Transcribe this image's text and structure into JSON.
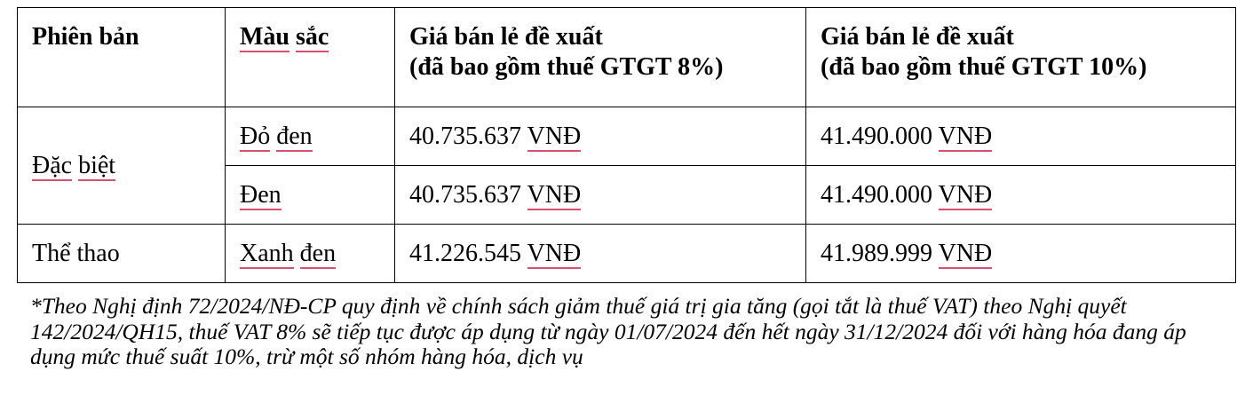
{
  "table": {
    "headers": [
      [
        {
          "t": "Phiên bản",
          "u": false
        }
      ],
      [
        {
          "t": "Màu",
          "u": true
        },
        {
          "t": " ",
          "u": false
        },
        {
          "t": "sắc",
          "u": true
        }
      ],
      [
        {
          "t": "Giá bán lẻ đề xuất",
          "u": false
        },
        {
          "br": true
        },
        {
          "t": "(đã bao gồm thuế GTGT 8%)",
          "u": false
        }
      ],
      [
        {
          "t": "Giá bán lẻ đề xuất",
          "u": false
        },
        {
          "br": true
        },
        {
          "t": "(đã bao gồm thuế GTGT 10%)",
          "u": false
        }
      ]
    ],
    "rows": [
      {
        "version": [
          {
            "t": "Đặc",
            "u": true
          },
          {
            "t": " ",
            "u": false
          },
          {
            "t": "biệt",
            "u": true
          }
        ],
        "version_rowspan": 2,
        "color": [
          {
            "t": "Đỏ",
            "u": true
          },
          {
            "t": " ",
            "u": false
          },
          {
            "t": "đen",
            "u": true
          }
        ],
        "price8": [
          {
            "t": "40.735.637 ",
            "u": false
          },
          {
            "t": "VNĐ",
            "u": true
          }
        ],
        "price10": [
          {
            "t": "41.490.000 ",
            "u": false
          },
          {
            "t": "VNĐ",
            "u": true
          }
        ]
      },
      {
        "color": [
          {
            "t": "Đen",
            "u": true
          }
        ],
        "price8": [
          {
            "t": "40.735.637 ",
            "u": false
          },
          {
            "t": "VNĐ",
            "u": true
          }
        ],
        "price10": [
          {
            "t": "41.490.000 ",
            "u": false
          },
          {
            "t": "VNĐ",
            "u": true
          }
        ]
      },
      {
        "version": [
          {
            "t": "Thể thao",
            "u": false
          }
        ],
        "version_rowspan": 1,
        "color": [
          {
            "t": "Xanh",
            "u": true
          },
          {
            "t": " ",
            "u": false
          },
          {
            "t": "đen",
            "u": true
          }
        ],
        "price8": [
          {
            "t": "41.226.545 ",
            "u": false
          },
          {
            "t": "VNĐ",
            "u": true
          }
        ],
        "price10": [
          {
            "t": "41.989.999 ",
            "u": false
          },
          {
            "t": "VNĐ",
            "u": true
          }
        ]
      }
    ]
  },
  "spellcheck_underline_color": "#d9506e",
  "footnote": "*Theo Nghị định 72/2024/NĐ-CP quy định về chính sách giảm thuế giá trị gia tăng (gọi tắt là thuế VAT) theo Nghị quyết 142/2024/QH15, thuế VAT 8% sẽ tiếp tục được áp dụng từ ngày 01/07/2024 đến hết ngày 31/12/2024 đối với hàng hóa đang áp dụng mức thuế suất 10%, trừ một số nhóm hàng hóa, dịch vụ"
}
